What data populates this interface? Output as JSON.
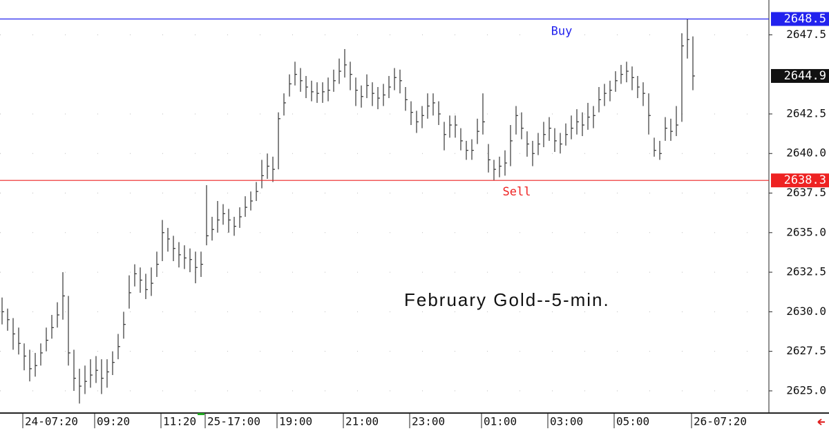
{
  "chart_data": {
    "type": "hlc",
    "title": "February Gold--5-min.",
    "categories": [
      null,
      null,
      null,
      null,
      "24-07:20",
      null,
      null,
      null,
      null,
      null,
      null,
      null,
      null,
      null,
      null,
      null,
      null,
      "09:20",
      null,
      null,
      null,
      null,
      null,
      null,
      null,
      null,
      null,
      null,
      null,
      "11:20",
      null,
      null,
      null,
      null,
      null,
      null,
      null,
      "25-17:00",
      null,
      null,
      null,
      null,
      null,
      null,
      null,
      null,
      null,
      null,
      null,
      null,
      "19:00",
      null,
      null,
      null,
      null,
      null,
      null,
      null,
      null,
      null,
      null,
      null,
      "21:00",
      null,
      null,
      null,
      null,
      null,
      null,
      null,
      null,
      null,
      null,
      null,
      "23:00",
      null,
      null,
      null,
      null,
      null,
      null,
      null,
      null,
      null,
      null,
      null,
      null,
      "01:00",
      null,
      null,
      null,
      null,
      null,
      null,
      null,
      null,
      null,
      null,
      null,
      "03:00",
      null,
      null,
      null,
      null,
      null,
      null,
      null,
      null,
      null,
      null,
      null,
      "05:00",
      null,
      null,
      null,
      null,
      null,
      null,
      null,
      null,
      null,
      null,
      null,
      null,
      null,
      "26-07:20"
    ],
    "high": [
      2630.9,
      2630.2,
      2629.6,
      2629.0,
      2628.0,
      2627.6,
      2627.4,
      2628.0,
      2629.0,
      2629.8,
      2630.6,
      2632.5,
      2631.0,
      2627.6,
      2626.4,
      2626.6,
      2627.0,
      2627.2,
      2627.0,
      2627.0,
      2627.5,
      2628.6,
      2630.0,
      2632.3,
      2633.0,
      2632.8,
      2632.4,
      2632.8,
      2633.8,
      2635.8,
      2635.3,
      2634.8,
      2634.4,
      2634.2,
      2634.0,
      2633.8,
      2633.8,
      2638.0,
      2636.0,
      2637.0,
      2636.8,
      2636.5,
      2636.0,
      2636.6,
      2637.3,
      2637.6,
      2638.2,
      2639.6,
      2640.0,
      2639.8,
      2642.6,
      2643.8,
      2645.0,
      2645.8,
      2645.4,
      2644.9,
      2644.6,
      2644.5,
      2644.5,
      2644.8,
      2645.3,
      2646.0,
      2646.6,
      2645.8,
      2644.8,
      2644.3,
      2645.0,
      2644.5,
      2644.2,
      2644.4,
      2644.9,
      2645.4,
      2645.3,
      2644.2,
      2643.3,
      2642.7,
      2643.0,
      2643.8,
      2643.8,
      2643.3,
      2642.0,
      2642.4,
      2642.4,
      2641.6,
      2640.8,
      2640.9,
      2642.2,
      2643.8,
      2640.6,
      2639.6,
      2639.8,
      2640.2,
      2641.8,
      2643.0,
      2642.6,
      2641.4,
      2640.8,
      2641.3,
      2642.0,
      2642.3,
      2641.6,
      2641.3,
      2641.9,
      2642.4,
      2642.8,
      2642.6,
      2643.2,
      2643.0,
      2644.2,
      2644.4,
      2644.6,
      2645.2,
      2645.6,
      2645.8,
      2645.5,
      2644.9,
      2644.5,
      2643.8,
      2641.0,
      2640.8,
      2642.3,
      2642.2,
      2643.0,
      2647.6,
      2648.5,
      2647.4
    ],
    "low": [
      2629.2,
      2628.8,
      2627.6,
      2627.3,
      2626.3,
      2625.6,
      2625.9,
      2626.6,
      2627.5,
      2628.3,
      2629.0,
      2629.5,
      2626.6,
      2625.0,
      2624.2,
      2624.8,
      2625.2,
      2625.5,
      2624.8,
      2625.2,
      2626.0,
      2627.0,
      2628.3,
      2630.2,
      2631.6,
      2631.2,
      2630.8,
      2631.0,
      2632.2,
      2633.2,
      2633.8,
      2633.2,
      2632.8,
      2632.7,
      2632.5,
      2631.8,
      2632.2,
      2634.2,
      2634.5,
      2635.0,
      2635.5,
      2635.0,
      2634.8,
      2635.3,
      2636.0,
      2636.4,
      2637.0,
      2637.8,
      2638.4,
      2638.2,
      2639.0,
      2642.4,
      2643.6,
      2644.3,
      2643.9,
      2643.5,
      2643.3,
      2643.2,
      2643.2,
      2643.3,
      2643.9,
      2644.4,
      2644.8,
      2644.0,
      2643.0,
      2642.9,
      2643.5,
      2643.0,
      2642.8,
      2643.0,
      2643.5,
      2644.0,
      2643.8,
      2642.7,
      2641.8,
      2641.3,
      2641.6,
      2642.2,
      2642.4,
      2641.8,
      2640.2,
      2641.0,
      2641.0,
      2640.2,
      2639.6,
      2639.6,
      2640.6,
      2641.2,
      2638.8,
      2638.3,
      2638.5,
      2638.6,
      2639.2,
      2641.2,
      2640.9,
      2639.8,
      2639.2,
      2639.9,
      2640.4,
      2640.8,
      2640.1,
      2640.0,
      2640.5,
      2640.9,
      2641.2,
      2641.1,
      2641.5,
      2641.6,
      2642.6,
      2643.0,
      2643.3,
      2643.9,
      2644.4,
      2644.5,
      2644.0,
      2643.5,
      2643.0,
      2641.2,
      2639.8,
      2639.6,
      2640.8,
      2640.8,
      2641.1,
      2642.0,
      2646.0,
      2644.0
    ],
    "close": [
      2630.0,
      2629.5,
      2628.6,
      2628.0,
      2627.2,
      2626.4,
      2626.6,
      2627.4,
      2628.2,
      2629.0,
      2629.8,
      2631.0,
      2627.4,
      2625.8,
      2625.3,
      2625.6,
      2626.0,
      2626.3,
      2625.8,
      2626.2,
      2626.8,
      2627.8,
      2629.2,
      2631.2,
      2632.4,
      2632.0,
      2631.4,
      2631.8,
      2633.0,
      2635.0,
      2634.6,
      2634.0,
      2633.6,
      2633.4,
      2633.3,
      2632.8,
      2633.0,
      2634.8,
      2635.2,
      2635.8,
      2636.2,
      2635.8,
      2635.4,
      2636.0,
      2636.6,
      2637.0,
      2637.6,
      2638.6,
      2639.2,
      2639.0,
      2642.2,
      2643.2,
      2644.4,
      2645.0,
      2644.6,
      2644.2,
      2643.9,
      2643.8,
      2643.9,
      2644.0,
      2644.6,
      2645.2,
      2645.6,
      2645.0,
      2644.0,
      2643.6,
      2644.3,
      2643.8,
      2643.5,
      2643.7,
      2644.2,
      2644.8,
      2644.6,
      2643.4,
      2642.6,
      2642.0,
      2642.4,
      2643.0,
      2643.2,
      2642.5,
      2641.2,
      2641.8,
      2641.8,
      2640.8,
      2640.2,
      2640.2,
      2641.4,
      2642.0,
      2639.6,
      2639.0,
      2639.2,
      2639.4,
      2640.8,
      2642.4,
      2641.6,
      2640.6,
      2640.0,
      2640.6,
      2641.2,
      2641.6,
      2640.8,
      2640.6,
      2641.2,
      2641.6,
      2642.0,
      2641.8,
      2642.3,
      2642.4,
      2643.4,
      2643.8,
      2644.0,
      2644.6,
      2645.0,
      2645.2,
      2644.8,
      2644.2,
      2643.8,
      2642.4,
      2640.2,
      2640.0,
      2641.6,
      2641.4,
      2641.8,
      2646.8,
      2647.2,
      2644.9
    ],
    "color": "#333333",
    "lines": [
      {
        "name": "Buy",
        "value": 2648.5,
        "color": "#2222ee"
      },
      {
        "name": "Sell",
        "value": 2638.3,
        "color": "#ee2222"
      }
    ],
    "ylim": [
      2623.6,
      2649.7
    ],
    "yticks": [
      {
        "value": 2625,
        "label": "2625.0"
      },
      2627.5,
      {
        "value": 2630,
        "label": "2630.0"
      },
      2632.5,
      {
        "value": 2635,
        "label": "2635.0"
      },
      2637.5,
      {
        "value": 2640,
        "label": "2640.0"
      },
      2642.5,
      2647.5
    ],
    "grid": true
  }
}
